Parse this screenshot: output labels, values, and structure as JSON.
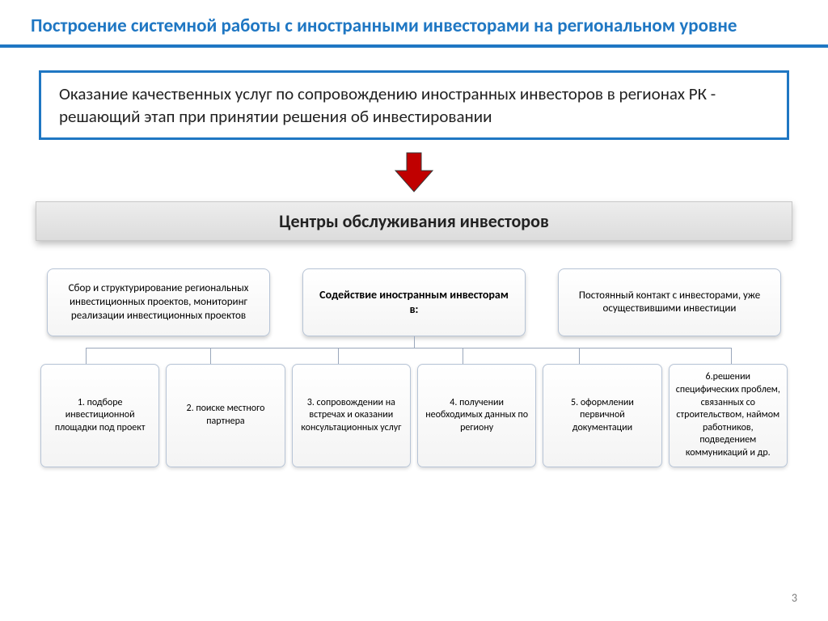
{
  "title": "Построение системной работы с иностранными инвесторами на региональном уровне",
  "callout": "Оказание качественных услуг по сопровождению иностранных инвесторов в регионах РК - решающий этап при принятии решения об инвестировании",
  "banner": "Центры обслуживания инвесторов",
  "arrow": {
    "fill": "#c00000",
    "stroke": "#3a3a3a",
    "width": 54,
    "height": 54
  },
  "colors": {
    "accent": "#1f77c3",
    "node_border": "#b7c4d6",
    "connector": "#9aa7bb",
    "banner_from": "#ededed",
    "banner_to": "#dcdcdc",
    "background": "#ffffff"
  },
  "top_nodes": [
    {
      "text": "Сбор и структурирование региональных инвестиционных проектов, мониторинг реализации инвестиционных проектов",
      "bold": false
    },
    {
      "text": "Содействие иностранным инвесторам в:",
      "bold": true
    },
    {
      "text": "Постоянный контакт с инвесторами, уже осуществившими инвестиции",
      "bold": false
    }
  ],
  "bottom_nodes": [
    "1. подборе инвестиционной площадки под проект",
    "2. поиске местного партнера",
    "3. сопровождении на встречах и оказании консультационных услуг",
    "4. получении необходимых данных по региону",
    "5. оформлении первичной документации",
    "6.решении специфических проблем, связанных со строительством, наймом работников, подведением коммуникаций и др."
  ],
  "connectors": {
    "h_left_pct": 5.3,
    "h_right_pct": 93.2,
    "drops_pct": [
      5.3,
      22.2,
      39.7,
      56.6,
      72.5,
      93.2
    ]
  },
  "page_number": "3"
}
